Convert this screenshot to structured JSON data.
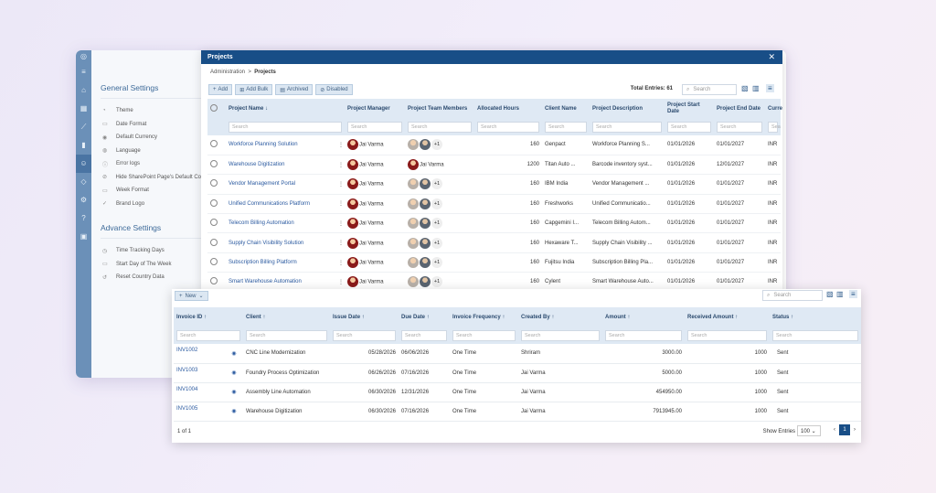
{
  "settings": {
    "general_title": "General Settings",
    "general_items": [
      {
        "icon": "theme-icon",
        "label": "Theme"
      },
      {
        "icon": "calendar-icon",
        "label": "Date Format"
      },
      {
        "icon": "currency-icon",
        "label": "Default Currency"
      },
      {
        "icon": "globe-icon",
        "label": "Language"
      },
      {
        "icon": "info-icon",
        "label": "Error logs"
      },
      {
        "icon": "eye-off-icon",
        "label": "Hide SharePoint Page's Default Co"
      },
      {
        "icon": "calendar-icon",
        "label": "Week Format"
      },
      {
        "icon": "check-circle-icon",
        "label": "Brand Logo"
      }
    ],
    "advanced_title": "Advance Settings",
    "advanced_items": [
      {
        "icon": "clock-icon",
        "label": "Time Tracking Days"
      },
      {
        "icon": "calendar-icon",
        "label": "Start Day of The Week"
      },
      {
        "icon": "reset-icon",
        "label": "Reset Country Data"
      }
    ]
  },
  "projects": {
    "title": "Projects",
    "breadcrumb": {
      "root": "Administration",
      "sep": ">",
      "current": "Projects"
    },
    "toolbar": {
      "add": "Add",
      "add_bulk": "Add Bulk",
      "archived": "Archived",
      "disabled": "Disabled"
    },
    "total_entries": "Total Entries: 61",
    "search_placeholder": "Search",
    "columns": [
      "Project Name ↓",
      "Project Manager",
      "Project Team Members",
      "Allocated Hours",
      "Client Name",
      "Project Description",
      "Project Start Date",
      "Project End Date",
      "Currency"
    ],
    "filter_placeholder": "Search",
    "rows": [
      {
        "name": "Workforce Planning Solution",
        "manager": "Jai Varma",
        "team_single": "",
        "team_more": "+1",
        "hours": "160",
        "client": "Genpact",
        "desc": "Workforce Planning S...",
        "start": "01/01/2026",
        "end": "01/01/2027",
        "currency": "INR"
      },
      {
        "name": "Warehouse Digitization",
        "manager": "Jai Varma",
        "team_single": "Jai Varma",
        "team_more": "",
        "hours": "1200",
        "client": "Titan Auto ...",
        "desc": "Barcode inventory syst...",
        "start": "01/01/2026",
        "end": "12/01/2027",
        "currency": "INR"
      },
      {
        "name": "Vendor Management Portal",
        "manager": "Jai Varma",
        "team_single": "",
        "team_more": "+1",
        "hours": "160",
        "client": "IBM India",
        "desc": "Vendor Management ...",
        "start": "01/01/2026",
        "end": "01/01/2027",
        "currency": "INR"
      },
      {
        "name": "Unified Communications Platform",
        "manager": "Jai Varma",
        "team_single": "",
        "team_more": "+1",
        "hours": "160",
        "client": "Freshworks",
        "desc": "Unified Communicatio...",
        "start": "01/01/2026",
        "end": "01/01/2027",
        "currency": "INR"
      },
      {
        "name": "Telecom Billing Automation",
        "manager": "Jai Varma",
        "team_single": "",
        "team_more": "+1",
        "hours": "160",
        "client": "Capgemini I...",
        "desc": "Telecom Billing Autom...",
        "start": "01/01/2026",
        "end": "01/01/2027",
        "currency": "INR"
      },
      {
        "name": "Supply Chain Visibility Solution",
        "manager": "Jai Varma",
        "team_single": "",
        "team_more": "+1",
        "hours": "160",
        "client": "Hexaware T...",
        "desc": "Supply Chain Visibility ...",
        "start": "01/01/2026",
        "end": "01/01/2027",
        "currency": "INR"
      },
      {
        "name": "Subscription Billing Platform",
        "manager": "Jai Varma",
        "team_single": "",
        "team_more": "+1",
        "hours": "160",
        "client": "Fujitsu India",
        "desc": "Subscription Billing Pla...",
        "start": "01/01/2026",
        "end": "01/01/2027",
        "currency": "INR"
      },
      {
        "name": "Smart Warehouse Automation",
        "manager": "Jai Varma",
        "team_single": "",
        "team_more": "+1",
        "hours": "160",
        "client": "Cylent",
        "desc": "Smart Warehouse Auto...",
        "start": "01/01/2026",
        "end": "01/01/2027",
        "currency": "INR"
      }
    ]
  },
  "invoices": {
    "new_label": "New",
    "search_placeholder": "Search",
    "columns": [
      "Invoice ID ↑",
      "Client ↑",
      "Issue Date ↑",
      "Due Date ↑",
      "Invoice Frequency ↑",
      "Created By ↑",
      "Amount ↑",
      "Received Amount ↑",
      "Status ↑"
    ],
    "filter_placeholder": "Search",
    "rows": [
      {
        "id": "INV1002",
        "client": "CNC Line Modernization",
        "issue": "05/28/2026",
        "due": "06/06/2026",
        "freq": "One Time",
        "by": "Shriram",
        "amount": "3000.00",
        "received": "1000",
        "status": "Sent"
      },
      {
        "id": "INV1003",
        "client": "Foundry Process Optimization",
        "issue": "06/26/2026",
        "due": "07/16/2026",
        "freq": "One Time",
        "by": "Jai Varma",
        "amount": "5000.00",
        "received": "1000",
        "status": "Sent"
      },
      {
        "id": "INV1004",
        "client": "Assembly Line Automation",
        "issue": "06/30/2026",
        "due": "12/31/2026",
        "freq": "One Time",
        "by": "Jai Varma",
        "amount": "454950.00",
        "received": "1000",
        "status": "Sent"
      },
      {
        "id": "INV1005",
        "client": "Warehouse Digitization",
        "issue": "06/30/2026",
        "due": "07/16/2026",
        "freq": "One Time",
        "by": "Jai Varma",
        "amount": "7913945.00",
        "received": "1000",
        "status": "Sent"
      }
    ],
    "footer": {
      "page_info": "1 of 1",
      "show_entries": "Show Entries",
      "entries_value": "100",
      "current_page": "1"
    }
  }
}
